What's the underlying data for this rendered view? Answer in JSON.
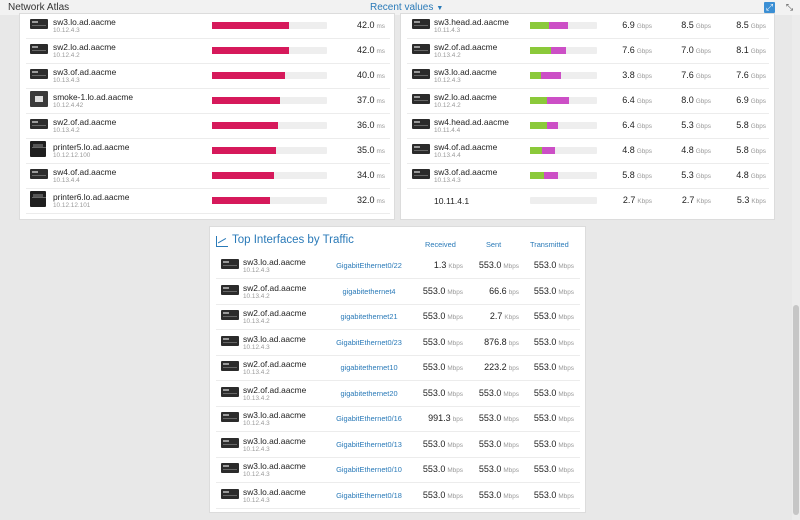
{
  "topbar": {
    "title": "Network Atlas",
    "view_select": "Recent values"
  },
  "response_time": {
    "unit": "ms",
    "bar_color": "#d6195b",
    "scale_max_ms": 63,
    "rows": [
      {
        "name": "sw3.lo.ad.aacme",
        "ip": "10.12.4.3",
        "value": "42.0",
        "ms": 42.0,
        "icon": "switch-icon"
      },
      {
        "name": "sw2.lo.ad.aacme",
        "ip": "10.12.4.2",
        "value": "42.0",
        "ms": 42.0,
        "icon": "switch-icon"
      },
      {
        "name": "sw3.of.ad.aacme",
        "ip": "10.13.4.3",
        "value": "40.0",
        "ms": 40.0,
        "icon": "switch-icon"
      },
      {
        "name": "smoke-1.lo.ad.aacme",
        "ip": "10.12.4.42",
        "value": "37.0",
        "ms": 37.0,
        "icon": "multi-device-icon"
      },
      {
        "name": "sw2.of.ad.aacme",
        "ip": "10.13.4.2",
        "value": "36.0",
        "ms": 36.0,
        "icon": "switch-icon"
      },
      {
        "name": "printer5.lo.ad.aacme",
        "ip": "10.12.12.100",
        "value": "35.0",
        "ms": 35.0,
        "icon": "printer-icon"
      },
      {
        "name": "sw4.of.ad.aacme",
        "ip": "10.13.4.4",
        "value": "34.0",
        "ms": 34.0,
        "icon": "switch-icon"
      },
      {
        "name": "printer6.lo.ad.aacme",
        "ip": "10.12.12.101",
        "value": "32.0",
        "ms": 32.0,
        "icon": "printer-icon"
      }
    ]
  },
  "bandwidth": {
    "colors": {
      "received": "#8bc93a",
      "sent": "#cc4fc6"
    },
    "rows": [
      {
        "name": "sw3.head.ad.aacme",
        "ip": "10.11.4.3",
        "green": 0.28,
        "purple": 0.57,
        "c1": "6.9",
        "u1": "Gbps",
        "c2": "8.5",
        "u2": "Gbps",
        "c3": "8.5",
        "u3": "Gbps"
      },
      {
        "name": "sw2.of.ad.aacme",
        "ip": "10.13.4.2",
        "green": 0.31,
        "purple": 0.53,
        "c1": "7.6",
        "u1": "Gbps",
        "c2": "7.0",
        "u2": "Gbps",
        "c3": "8.1",
        "u3": "Gbps"
      },
      {
        "name": "sw3.lo.ad.aacme",
        "ip": "10.12.4.3",
        "green": 0.16,
        "purple": 0.46,
        "c1": "3.8",
        "u1": "Gbps",
        "c2": "7.6",
        "u2": "Gbps",
        "c3": "7.6",
        "u3": "Gbps"
      },
      {
        "name": "sw2.lo.ad.aacme",
        "ip": "10.12.4.2",
        "green": 0.25,
        "purple": 0.58,
        "c1": "6.4",
        "u1": "Gbps",
        "c2": "8.0",
        "u2": "Gbps",
        "c3": "6.9",
        "u3": "Gbps"
      },
      {
        "name": "sw4.head.ad.aacme",
        "ip": "10.11.4.4",
        "green": 0.25,
        "purple": 0.42,
        "c1": "6.4",
        "u1": "Gbps",
        "c2": "5.3",
        "u2": "Gbps",
        "c3": "5.8",
        "u3": "Gbps"
      },
      {
        "name": "sw4.of.ad.aacme",
        "ip": "10.13.4.4",
        "green": 0.18,
        "purple": 0.37,
        "c1": "4.8",
        "u1": "Gbps",
        "c2": "4.8",
        "u2": "Gbps",
        "c3": "5.8",
        "u3": "Gbps"
      },
      {
        "name": "sw3.of.ad.aacme",
        "ip": "10.13.4.3",
        "green": 0.21,
        "purple": 0.42,
        "c1": "5.8",
        "u1": "Gbps",
        "c2": "5.3",
        "u2": "Gbps",
        "c3": "4.8",
        "u3": "Gbps"
      }
    ],
    "ip_row": {
      "ip": "10.11.4.1",
      "c1": "2.7",
      "u1": "Kbps",
      "c2": "2.7",
      "u2": "Kbps",
      "c3": "5.3",
      "u3": "Kbps"
    }
  },
  "top_interfaces": {
    "title": "Top Interfaces by Traffic",
    "columns": {
      "received": "Received",
      "sent": "Sent",
      "transmitted": "Transmitted"
    },
    "rows": [
      {
        "name": "sw3.lo.ad.aacme",
        "ip": "10.12.4.3",
        "iface": "GigabitEthernet0/22",
        "rv": "1.3",
        "ru": "Kbps",
        "sv": "553.0",
        "su": "Mbps",
        "tv": "553.0",
        "tu": "Mbps"
      },
      {
        "name": "sw2.of.ad.aacme",
        "ip": "10.13.4.2",
        "iface": "gigabitethernet4",
        "rv": "553.0",
        "ru": "Mbps",
        "sv": "66.6",
        "su": "bps",
        "tv": "553.0",
        "tu": "Mbps"
      },
      {
        "name": "sw2.of.ad.aacme",
        "ip": "10.13.4.2",
        "iface": "gigabitethernet21",
        "rv": "553.0",
        "ru": "Mbps",
        "sv": "2.7",
        "su": "Kbps",
        "tv": "553.0",
        "tu": "Mbps"
      },
      {
        "name": "sw3.lo.ad.aacme",
        "ip": "10.12.4.3",
        "iface": "GigabitEthernet0/23",
        "rv": "553.0",
        "ru": "Mbps",
        "sv": "876.8",
        "su": "bps",
        "tv": "553.0",
        "tu": "Mbps"
      },
      {
        "name": "sw2.of.ad.aacme",
        "ip": "10.13.4.2",
        "iface": "gigabitethernet10",
        "rv": "553.0",
        "ru": "Mbps",
        "sv": "223.2",
        "su": "bps",
        "tv": "553.0",
        "tu": "Mbps"
      },
      {
        "name": "sw2.of.ad.aacme",
        "ip": "10.13.4.2",
        "iface": "gigabitethernet20",
        "rv": "553.0",
        "ru": "Mbps",
        "sv": "553.0",
        "su": "Mbps",
        "tv": "553.0",
        "tu": "Mbps"
      },
      {
        "name": "sw3.lo.ad.aacme",
        "ip": "10.12.4.3",
        "iface": "GigabitEthernet0/16",
        "rv": "991.3",
        "ru": "bps",
        "sv": "553.0",
        "su": "Mbps",
        "tv": "553.0",
        "tu": "Mbps"
      },
      {
        "name": "sw3.lo.ad.aacme",
        "ip": "10.12.4.3",
        "iface": "GigabitEthernet0/13",
        "rv": "553.0",
        "ru": "Mbps",
        "sv": "553.0",
        "su": "Mbps",
        "tv": "553.0",
        "tu": "Mbps"
      },
      {
        "name": "sw3.lo.ad.aacme",
        "ip": "10.12.4.3",
        "iface": "GigabitEthernet0/10",
        "rv": "553.0",
        "ru": "Mbps",
        "sv": "553.0",
        "su": "Mbps",
        "tv": "553.0",
        "tu": "Mbps"
      },
      {
        "name": "sw3.lo.ad.aacme",
        "ip": "10.12.4.3",
        "iface": "GigabitEthernet0/18",
        "rv": "553.0",
        "ru": "Mbps",
        "sv": "553.0",
        "su": "Mbps",
        "tv": "553.0",
        "tu": "Mbps"
      }
    ]
  }
}
